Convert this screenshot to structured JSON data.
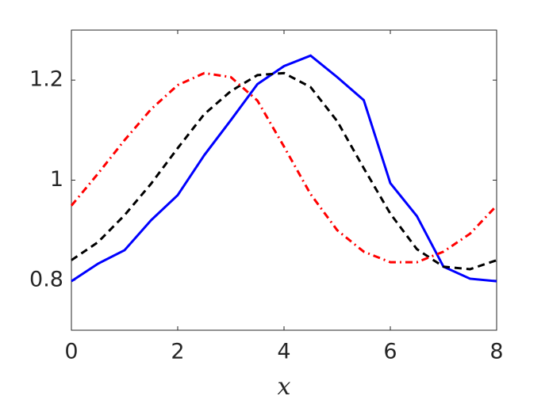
{
  "chart_data": {
    "type": "line",
    "xlabel": "x",
    "x": [
      0,
      0.5,
      1,
      1.5,
      2,
      2.5,
      3,
      3.5,
      4,
      4.5,
      5,
      5.5,
      6,
      6.5,
      7,
      7.5,
      8
    ],
    "series": [
      {
        "color": "#0000ff",
        "dash": "solid",
        "values": [
          0.798,
          0.833,
          0.86,
          0.92,
          0.97,
          1.05,
          1.12,
          1.192,
          1.228,
          1.249,
          1.206,
          1.16,
          0.994,
          0.928,
          0.827,
          0.803,
          0.798
        ]
      },
      {
        "color": "#000000",
        "dash": "dashed",
        "values": [
          0.84,
          0.876,
          0.93,
          0.993,
          1.064,
          1.132,
          1.178,
          1.21,
          1.214,
          1.186,
          1.118,
          1.024,
          0.933,
          0.862,
          0.827,
          0.822,
          0.84
        ]
      },
      {
        "color": "#ff0000",
        "dash": "dashdot",
        "values": [
          0.949,
          1.013,
          1.08,
          1.142,
          1.19,
          1.214,
          1.206,
          1.159,
          1.067,
          0.972,
          0.9,
          0.857,
          0.836,
          0.836,
          0.857,
          0.893,
          0.949
        ]
      }
    ],
    "xlim": [
      0,
      8
    ],
    "xticks": [
      0,
      2,
      4,
      6,
      8
    ],
    "ylim": [
      0.7,
      1.3
    ],
    "yticks": [
      0.8,
      1,
      1.2
    ],
    "grid": false
  }
}
